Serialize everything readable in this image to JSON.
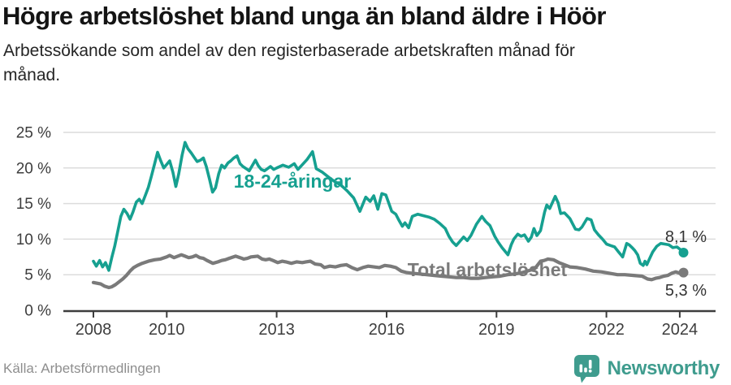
{
  "header": {
    "title": "Högre arbetslöshet bland unga än bland äldre i Höör",
    "subtitle": "Arbetssökande som andel av den registerbaserade arbetskraften månad för månad."
  },
  "footer": {
    "source": "Källa: Arbetsförmedlingen",
    "logo_text": "Newsworthy",
    "logo_color": "#3f9c8e"
  },
  "chart_data": {
    "type": "line",
    "title": "Högre arbetslöshet bland unga än bland äldre i Höör",
    "subtitle": "Arbetssökande som andel av den registerbaserade arbetskraften månad för månad.",
    "x_unit": "year (decimal, monthly data)",
    "y_unit": "percent",
    "xlim": [
      2007.6,
      2025.0
    ],
    "ylim": [
      0,
      25
    ],
    "grid": "horizontal",
    "legend_position": "inline-labels",
    "y_axis": {
      "ticks": [
        {
          "value": 25,
          "label": "25 %"
        },
        {
          "value": 20,
          "label": "20 %"
        },
        {
          "value": 15,
          "label": "15 %"
        },
        {
          "value": 10,
          "label": "10 %"
        },
        {
          "value": 5,
          "label": "5 %"
        },
        {
          "value": 0,
          "label": "0 %"
        }
      ]
    },
    "x_axis": {
      "ticks": [
        {
          "year": 2008,
          "label": "2008"
        },
        {
          "year": 2010,
          "label": "2010"
        },
        {
          "year": 2013,
          "label": "2013"
        },
        {
          "year": 2016,
          "label": "2016"
        },
        {
          "year": 2019,
          "label": "2019"
        },
        {
          "year": 2022,
          "label": "2022"
        },
        {
          "year": 2024,
          "label": "2024"
        }
      ]
    },
    "series": [
      {
        "name": "Total arbetslöshet",
        "label": "Total arbetslöshet",
        "end_label": "5,3 %",
        "end_value": 5.3,
        "color": "#7a7a7a",
        "stroke_width": 4.2,
        "points": [
          [
            2008.0,
            3.9
          ],
          [
            2008.1,
            3.8
          ],
          [
            2008.2,
            3.7
          ],
          [
            2008.3,
            3.4
          ],
          [
            2008.42,
            3.2
          ],
          [
            2008.5,
            3.3
          ],
          [
            2008.6,
            3.6
          ],
          [
            2008.7,
            4.0
          ],
          [
            2008.8,
            4.4
          ],
          [
            2008.9,
            4.9
          ],
          [
            2009.0,
            5.5
          ],
          [
            2009.1,
            6.0
          ],
          [
            2009.2,
            6.3
          ],
          [
            2009.33,
            6.6
          ],
          [
            2009.5,
            6.9
          ],
          [
            2009.67,
            7.1
          ],
          [
            2009.83,
            7.2
          ],
          [
            2010.0,
            7.5
          ],
          [
            2010.08,
            7.7
          ],
          [
            2010.2,
            7.4
          ],
          [
            2010.3,
            7.6
          ],
          [
            2010.4,
            7.8
          ],
          [
            2010.5,
            7.6
          ],
          [
            2010.6,
            7.4
          ],
          [
            2010.7,
            7.5
          ],
          [
            2010.8,
            7.7
          ],
          [
            2010.9,
            7.4
          ],
          [
            2011.0,
            7.3
          ],
          [
            2011.1,
            7.0
          ],
          [
            2011.26,
            6.6
          ],
          [
            2011.4,
            6.8
          ],
          [
            2011.5,
            7.0
          ],
          [
            2011.6,
            7.1
          ],
          [
            2011.7,
            7.3
          ],
          [
            2011.88,
            7.6
          ],
          [
            2012.0,
            7.4
          ],
          [
            2012.1,
            7.2
          ],
          [
            2012.2,
            7.3
          ],
          [
            2012.3,
            7.5
          ],
          [
            2012.48,
            7.6
          ],
          [
            2012.6,
            7.2
          ],
          [
            2012.7,
            7.1
          ],
          [
            2012.8,
            7.2
          ],
          [
            2012.9,
            7.0
          ],
          [
            2013.03,
            6.7
          ],
          [
            2013.15,
            6.9
          ],
          [
            2013.25,
            6.8
          ],
          [
            2013.4,
            6.6
          ],
          [
            2013.55,
            6.8
          ],
          [
            2013.7,
            6.7
          ],
          [
            2013.8,
            6.8
          ],
          [
            2013.92,
            6.9
          ],
          [
            2014.05,
            6.5
          ],
          [
            2014.2,
            6.4
          ],
          [
            2014.3,
            6.0
          ],
          [
            2014.45,
            6.2
          ],
          [
            2014.6,
            6.1
          ],
          [
            2014.75,
            6.3
          ],
          [
            2014.9,
            6.4
          ],
          [
            2015.05,
            6.0
          ],
          [
            2015.2,
            5.7
          ],
          [
            2015.35,
            6.0
          ],
          [
            2015.5,
            6.2
          ],
          [
            2015.65,
            6.1
          ],
          [
            2015.8,
            6.0
          ],
          [
            2015.95,
            6.3
          ],
          [
            2016.1,
            6.2
          ],
          [
            2016.25,
            6.0
          ],
          [
            2016.4,
            5.5
          ],
          [
            2016.55,
            5.3
          ],
          [
            2016.7,
            5.2
          ],
          [
            2016.9,
            5.1
          ],
          [
            2017.1,
            5.0
          ],
          [
            2017.3,
            4.9
          ],
          [
            2017.5,
            4.8
          ],
          [
            2017.7,
            4.7
          ],
          [
            2017.9,
            4.6
          ],
          [
            2018.1,
            4.6
          ],
          [
            2018.3,
            4.5
          ],
          [
            2018.5,
            4.5
          ],
          [
            2018.7,
            4.6
          ],
          [
            2018.9,
            4.7
          ],
          [
            2019.1,
            4.8
          ],
          [
            2019.3,
            5.0
          ],
          [
            2019.5,
            5.1
          ],
          [
            2019.7,
            5.3
          ],
          [
            2019.9,
            5.6
          ],
          [
            2020.05,
            5.9
          ],
          [
            2020.2,
            6.9
          ],
          [
            2020.3,
            7.0
          ],
          [
            2020.4,
            7.2
          ],
          [
            2020.55,
            7.1
          ],
          [
            2020.7,
            6.7
          ],
          [
            2020.85,
            6.4
          ],
          [
            2021.0,
            6.1
          ],
          [
            2021.2,
            6.0
          ],
          [
            2021.42,
            5.8
          ],
          [
            2021.64,
            5.5
          ],
          [
            2021.86,
            5.4
          ],
          [
            2022.08,
            5.2
          ],
          [
            2022.3,
            5.0
          ],
          [
            2022.5,
            5.0
          ],
          [
            2022.74,
            4.9
          ],
          [
            2022.97,
            4.8
          ],
          [
            2023.12,
            4.4
          ],
          [
            2023.23,
            4.3
          ],
          [
            2023.34,
            4.5
          ],
          [
            2023.45,
            4.6
          ],
          [
            2023.56,
            4.8
          ],
          [
            2023.67,
            4.9
          ],
          [
            2023.78,
            5.2
          ],
          [
            2023.89,
            5.4
          ],
          [
            2024.0,
            5.2
          ],
          [
            2024.1,
            5.3
          ]
        ]
      },
      {
        "name": "18-24-åringar",
        "label": "18-24-åringar",
        "end_label": "8,1 %",
        "end_value": 8.1,
        "color": "#16a090",
        "stroke_width": 3.6,
        "points": [
          [
            2008.0,
            6.9
          ],
          [
            2008.08,
            6.2
          ],
          [
            2008.17,
            7.0
          ],
          [
            2008.25,
            6.1
          ],
          [
            2008.33,
            6.7
          ],
          [
            2008.42,
            5.6
          ],
          [
            2008.5,
            7.4
          ],
          [
            2008.58,
            9.0
          ],
          [
            2008.67,
            11.2
          ],
          [
            2008.75,
            13.2
          ],
          [
            2008.83,
            14.2
          ],
          [
            2008.92,
            13.6
          ],
          [
            2009.0,
            12.8
          ],
          [
            2009.08,
            13.8
          ],
          [
            2009.17,
            15.2
          ],
          [
            2009.25,
            15.6
          ],
          [
            2009.33,
            15.0
          ],
          [
            2009.42,
            16.2
          ],
          [
            2009.5,
            17.3
          ],
          [
            2009.58,
            18.8
          ],
          [
            2009.67,
            20.6
          ],
          [
            2009.75,
            22.2
          ],
          [
            2009.83,
            21.1
          ],
          [
            2009.92,
            20.0
          ],
          [
            2010.0,
            20.5
          ],
          [
            2010.08,
            21.0
          ],
          [
            2010.17,
            19.4
          ],
          [
            2010.25,
            17.4
          ],
          [
            2010.33,
            19.2
          ],
          [
            2010.42,
            21.8
          ],
          [
            2010.5,
            23.6
          ],
          [
            2010.58,
            22.7
          ],
          [
            2010.67,
            22.1
          ],
          [
            2010.75,
            21.5
          ],
          [
            2010.83,
            20.9
          ],
          [
            2010.92,
            21.1
          ],
          [
            2011.0,
            21.4
          ],
          [
            2011.08,
            20.2
          ],
          [
            2011.17,
            18.4
          ],
          [
            2011.25,
            16.6
          ],
          [
            2011.33,
            17.2
          ],
          [
            2011.42,
            19.2
          ],
          [
            2011.5,
            20.4
          ],
          [
            2011.58,
            20.0
          ],
          [
            2011.67,
            20.7
          ],
          [
            2011.75,
            21.0
          ],
          [
            2011.83,
            21.4
          ],
          [
            2011.92,
            21.7
          ],
          [
            2012.0,
            20.6
          ],
          [
            2012.08,
            20.2
          ],
          [
            2012.17,
            19.9
          ],
          [
            2012.25,
            19.6
          ],
          [
            2012.33,
            20.3
          ],
          [
            2012.42,
            21.1
          ],
          [
            2012.5,
            20.3
          ],
          [
            2012.58,
            19.8
          ],
          [
            2012.67,
            19.6
          ],
          [
            2012.75,
            19.9
          ],
          [
            2012.83,
            20.2
          ],
          [
            2012.92,
            19.8
          ],
          [
            2013.0,
            20.0
          ],
          [
            2013.17,
            20.4
          ],
          [
            2013.33,
            20.1
          ],
          [
            2013.48,
            20.6
          ],
          [
            2013.58,
            19.8
          ],
          [
            2013.67,
            20.3
          ],
          [
            2013.83,
            21.2
          ],
          [
            2013.98,
            22.3
          ],
          [
            2014.08,
            19.9
          ],
          [
            2014.25,
            19.4
          ],
          [
            2014.42,
            18.7
          ],
          [
            2014.58,
            18.1
          ],
          [
            2014.75,
            17.6
          ],
          [
            2014.92,
            16.8
          ],
          [
            2015.1,
            15.8
          ],
          [
            2015.27,
            13.9
          ],
          [
            2015.43,
            15.9
          ],
          [
            2015.55,
            15.3
          ],
          [
            2015.65,
            16.1
          ],
          [
            2015.76,
            14.2
          ],
          [
            2015.87,
            16.4
          ],
          [
            2015.98,
            16.2
          ],
          [
            2016.14,
            13.9
          ],
          [
            2016.25,
            13.5
          ],
          [
            2016.33,
            12.7
          ],
          [
            2016.43,
            11.8
          ],
          [
            2016.5,
            12.3
          ],
          [
            2016.6,
            11.6
          ],
          [
            2016.7,
            13.2
          ],
          [
            2016.85,
            13.5
          ],
          [
            2017.0,
            13.3
          ],
          [
            2017.15,
            13.1
          ],
          [
            2017.3,
            12.8
          ],
          [
            2017.45,
            12.2
          ],
          [
            2017.6,
            11.5
          ],
          [
            2017.7,
            10.4
          ],
          [
            2017.8,
            9.6
          ],
          [
            2017.9,
            9.1
          ],
          [
            2018.0,
            9.7
          ],
          [
            2018.1,
            10.3
          ],
          [
            2018.2,
            9.8
          ],
          [
            2018.3,
            10.5
          ],
          [
            2018.45,
            12.1
          ],
          [
            2018.6,
            13.2
          ],
          [
            2018.7,
            12.5
          ],
          [
            2018.82,
            11.9
          ],
          [
            2018.95,
            10.4
          ],
          [
            2019.04,
            9.6
          ],
          [
            2019.15,
            8.8
          ],
          [
            2019.31,
            7.8
          ],
          [
            2019.4,
            9.2
          ],
          [
            2019.47,
            10.0
          ],
          [
            2019.58,
            10.7
          ],
          [
            2019.67,
            10.4
          ],
          [
            2019.76,
            10.6
          ],
          [
            2019.87,
            9.7
          ],
          [
            2019.95,
            10.3
          ],
          [
            2020.02,
            11.5
          ],
          [
            2020.1,
            10.5
          ],
          [
            2020.2,
            11.2
          ],
          [
            2020.31,
            13.8
          ],
          [
            2020.37,
            14.8
          ],
          [
            2020.45,
            14.3
          ],
          [
            2020.6,
            16.0
          ],
          [
            2020.68,
            15.1
          ],
          [
            2020.75,
            13.6
          ],
          [
            2020.85,
            13.7
          ],
          [
            2021.0,
            12.9
          ],
          [
            2021.15,
            11.4
          ],
          [
            2021.25,
            11.3
          ],
          [
            2021.33,
            11.7
          ],
          [
            2021.47,
            12.9
          ],
          [
            2021.58,
            12.7
          ],
          [
            2021.67,
            11.3
          ],
          [
            2021.78,
            10.6
          ],
          [
            2021.89,
            10.0
          ],
          [
            2022.0,
            9.3
          ],
          [
            2022.11,
            9.1
          ],
          [
            2022.22,
            8.9
          ],
          [
            2022.33,
            8.2
          ],
          [
            2022.44,
            7.5
          ],
          [
            2022.55,
            9.4
          ],
          [
            2022.62,
            9.2
          ],
          [
            2022.7,
            8.8
          ],
          [
            2022.77,
            8.4
          ],
          [
            2022.85,
            7.8
          ],
          [
            2022.92,
            6.6
          ],
          [
            2023.0,
            6.3
          ],
          [
            2023.05,
            6.9
          ],
          [
            2023.1,
            6.4
          ],
          [
            2023.16,
            7.1
          ],
          [
            2023.26,
            8.2
          ],
          [
            2023.37,
            9.0
          ],
          [
            2023.48,
            9.4
          ],
          [
            2023.59,
            9.3
          ],
          [
            2023.7,
            9.2
          ],
          [
            2023.81,
            8.8
          ],
          [
            2023.92,
            8.9
          ],
          [
            2024.0,
            8.6
          ],
          [
            2024.1,
            8.1
          ]
        ]
      }
    ]
  }
}
